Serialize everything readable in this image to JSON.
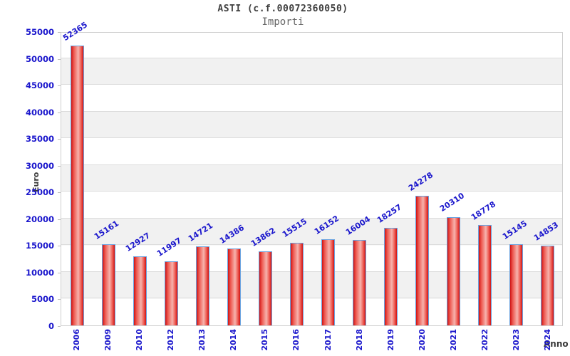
{
  "chart_data": {
    "type": "bar",
    "title": "ASTI (c.f.00072360050)",
    "subtitle": "Importi",
    "xlabel": "Anno",
    "ylabel": "Euro",
    "categories": [
      "2006",
      "2009",
      "2010",
      "2012",
      "2013",
      "2014",
      "2015",
      "2016",
      "2017",
      "2018",
      "2019",
      "2020",
      "2021",
      "2022",
      "2023",
      "2024"
    ],
    "values": [
      52365,
      15161,
      12927,
      11997,
      14721,
      14386,
      13862,
      15515,
      16152,
      16004,
      18257,
      24278,
      20310,
      18778,
      15145,
      14853
    ],
    "ylim": [
      0,
      55000
    ],
    "ytick_step": 5000,
    "grid": true,
    "legend_position": "none",
    "bar_value_labels_shown": true
  },
  "style": {
    "label_blue": "#1a16cc",
    "bar_red_dark": "#cf1414",
    "bar_red_mid": "#ee5a52",
    "bar_red_light": "#f6b3ad",
    "bar_border_blue": "#6ba3e0",
    "band_gray": "#f1f1f1",
    "grid_gray": "#dcdcdc",
    "title_color": "#3f3f3f",
    "subtitle_color": "#666666",
    "axis_title_color": "#3a3a3a"
  }
}
